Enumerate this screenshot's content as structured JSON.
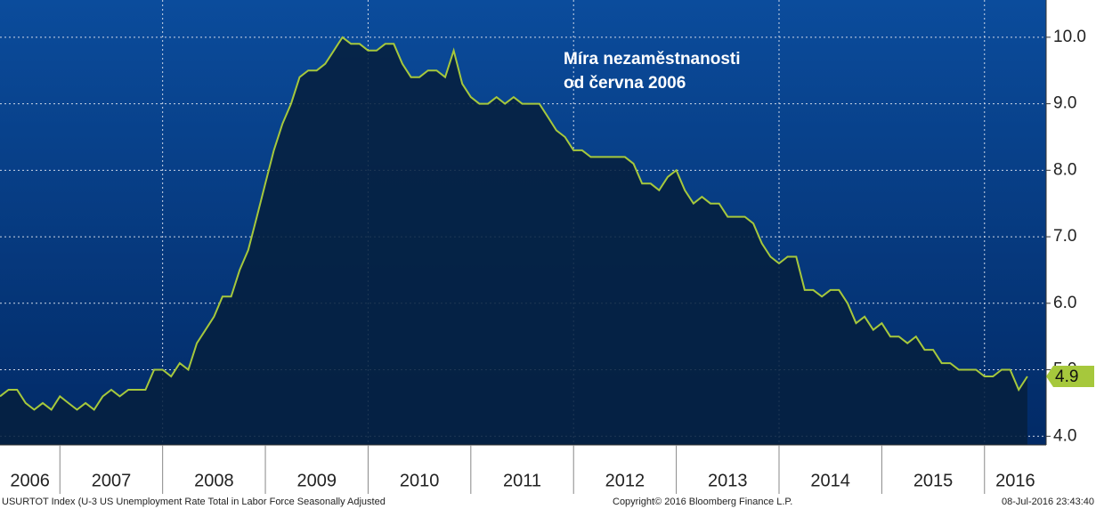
{
  "chart_data": {
    "type": "area",
    "annotation": [
      "Míra nezaměstnanosti",
      "od června 2006"
    ],
    "x": [
      2006.417,
      2006.5,
      2006.583,
      2006.667,
      2006.75,
      2006.833,
      2006.917,
      2007,
      2007.083,
      2007.167,
      2007.25,
      2007.333,
      2007.417,
      2007.5,
      2007.583,
      2007.667,
      2007.75,
      2007.833,
      2007.917,
      2008,
      2008.083,
      2008.167,
      2008.25,
      2008.333,
      2008.417,
      2008.5,
      2008.583,
      2008.667,
      2008.75,
      2008.833,
      2008.917,
      2009,
      2009.083,
      2009.167,
      2009.25,
      2009.333,
      2009.417,
      2009.5,
      2009.583,
      2009.667,
      2009.75,
      2009.833,
      2009.917,
      2010,
      2010.083,
      2010.167,
      2010.25,
      2010.333,
      2010.417,
      2010.5,
      2010.583,
      2010.667,
      2010.75,
      2010.833,
      2010.917,
      2011,
      2011.083,
      2011.167,
      2011.25,
      2011.333,
      2011.417,
      2011.5,
      2011.583,
      2011.667,
      2011.75,
      2011.833,
      2011.917,
      2012,
      2012.083,
      2012.167,
      2012.25,
      2012.333,
      2012.417,
      2012.5,
      2012.583,
      2012.667,
      2012.75,
      2012.833,
      2012.917,
      2013,
      2013.083,
      2013.167,
      2013.25,
      2013.333,
      2013.417,
      2013.5,
      2013.583,
      2013.667,
      2013.75,
      2013.833,
      2013.917,
      2014,
      2014.083,
      2014.167,
      2014.25,
      2014.333,
      2014.417,
      2014.5,
      2014.583,
      2014.667,
      2014.75,
      2014.833,
      2014.917,
      2015,
      2015.083,
      2015.167,
      2015.25,
      2015.333,
      2015.417,
      2015.5,
      2015.583,
      2015.667,
      2015.75,
      2015.833,
      2015.917,
      2016,
      2016.083,
      2016.167,
      2016.25,
      2016.333,
      2016.417
    ],
    "values": [
      4.6,
      4.7,
      4.7,
      4.5,
      4.4,
      4.5,
      4.4,
      4.6,
      4.5,
      4.4,
      4.5,
      4.4,
      4.6,
      4.7,
      4.6,
      4.7,
      4.7,
      4.7,
      5.0,
      5.0,
      4.9,
      5.1,
      5.0,
      5.4,
      5.6,
      5.8,
      6.1,
      6.1,
      6.5,
      6.8,
      7.3,
      7.8,
      8.3,
      8.7,
      9.0,
      9.4,
      9.5,
      9.5,
      9.6,
      9.8,
      10.0,
      9.9,
      9.9,
      9.8,
      9.8,
      9.9,
      9.9,
      9.6,
      9.4,
      9.4,
      9.5,
      9.5,
      9.4,
      9.8,
      9.3,
      9.1,
      9.0,
      9.0,
      9.1,
      9.0,
      9.1,
      9.0,
      9.0,
      9.0,
      8.8,
      8.6,
      8.5,
      8.3,
      8.3,
      8.2,
      8.2,
      8.2,
      8.2,
      8.2,
      8.1,
      7.8,
      7.8,
      7.7,
      7.9,
      8.0,
      7.7,
      7.5,
      7.6,
      7.5,
      7.5,
      7.3,
      7.3,
      7.3,
      7.2,
      6.9,
      6.7,
      6.6,
      6.7,
      6.7,
      6.2,
      6.2,
      6.1,
      6.2,
      6.2,
      6.0,
      5.7,
      5.8,
      5.6,
      5.7,
      5.5,
      5.5,
      5.4,
      5.5,
      5.3,
      5.3,
      5.1,
      5.1,
      5.0,
      5.0,
      5.0,
      4.9,
      4.9,
      5.0,
      5.0,
      4.7,
      4.9
    ],
    "color": "#a6c83c",
    "xlim": [
      2006.417,
      2016.6
    ],
    "ylim": [
      3.87,
      10.56
    ],
    "xticks": [
      2006,
      2007,
      2008,
      2009,
      2010,
      2011,
      2012,
      2013,
      2014,
      2015,
      2016
    ],
    "yticks": [
      {
        "value": 4,
        "label": "4.0"
      },
      {
        "value": 5,
        "label": "5.0"
      },
      {
        "value": 6,
        "label": "6.0"
      },
      {
        "value": 7,
        "label": "7.0"
      },
      {
        "value": 8,
        "label": "8.0"
      },
      {
        "value": 9,
        "label": "9.0"
      },
      {
        "value": 10,
        "label": "10.0"
      }
    ],
    "grid": true,
    "footer": {
      "source": "USURTOT Index (U-3 US Unemployment Rate Total in Labor Force Seasonally Adjusted",
      "copyright": "Copyright© 2016 Bloomberg Finance L.P.",
      "timestamp": "08-Jul-2016 23:43:40"
    }
  }
}
